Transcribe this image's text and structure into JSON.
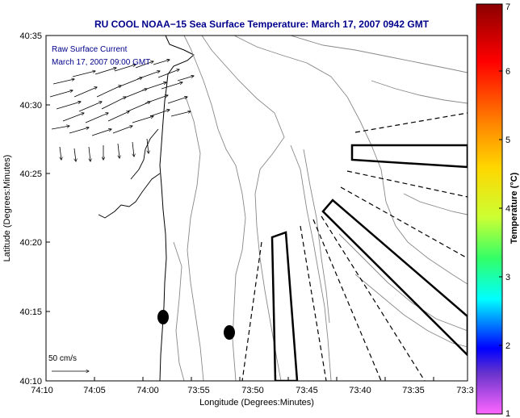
{
  "title": "RU COOL  NOAA−15  Sea Surface Temperature:  March 17, 2007 0942 GMT",
  "annotation_line1": "Raw Surface Current",
  "annotation_line2": "March 17, 2007 09:00 GMT",
  "scale_label": "50 cm/s",
  "xlabel": "Longitude (Degrees:Minutes)",
  "ylabel": "Latitude (Degrees:Minutes)",
  "colorbar_label": "Temperature (°C)",
  "x_ticks": [
    "74:10",
    "74:05",
    "74:00",
    "73:55",
    "73:50",
    "73:45",
    "73:40",
    "73:35",
    "73:3"
  ],
  "y_ticks": [
    "40:35",
    "40:30",
    "40:25",
    "40:20",
    "40:15",
    "40:10"
  ],
  "colorbar_ticks": [
    "7",
    "6",
    "5",
    "4",
    "3",
    "2",
    "1"
  ],
  "colorbar_colors": [
    "#8b0000",
    "#ff0000",
    "#ff8c00",
    "#ffff00",
    "#00ff00",
    "#00ffff",
    "#0000ff",
    "#6600cc",
    "#ff66ff"
  ]
}
